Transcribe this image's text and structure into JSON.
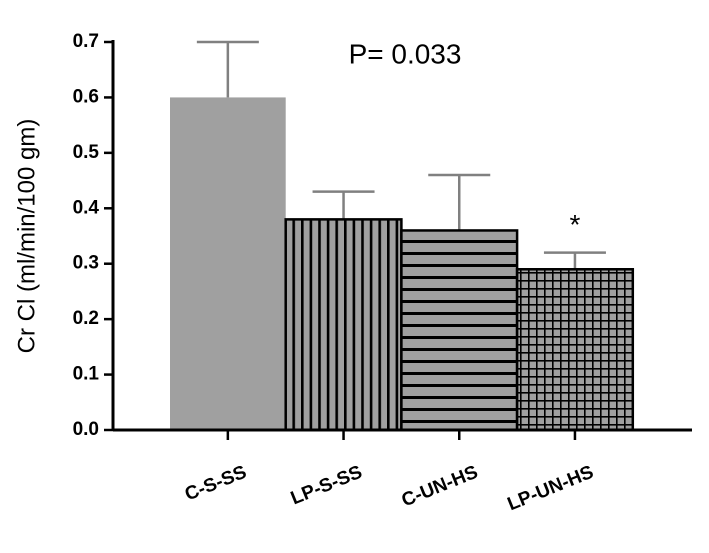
{
  "chart_data": {
    "type": "bar",
    "y_label": "Cr Cl (ml/min/100 gm)",
    "annotation": "P= 0.033",
    "significance": "*",
    "categories": [
      "C-S-SS",
      "LP-S-SS",
      "C-UN-HS",
      "LP-UN-HS"
    ],
    "values": [
      0.6,
      0.38,
      0.36,
      0.29
    ],
    "errors": [
      0.1,
      0.05,
      0.1,
      0.03
    ],
    "color": "#a0a0a0",
    "ylim": [
      0,
      0.7
    ],
    "yticks": [
      {
        "value": 0,
        "label": "0.0"
      },
      0.1,
      0.2,
      0.3,
      0.4,
      0.5,
      0.6,
      0.7
    ],
    "grid": false
  }
}
